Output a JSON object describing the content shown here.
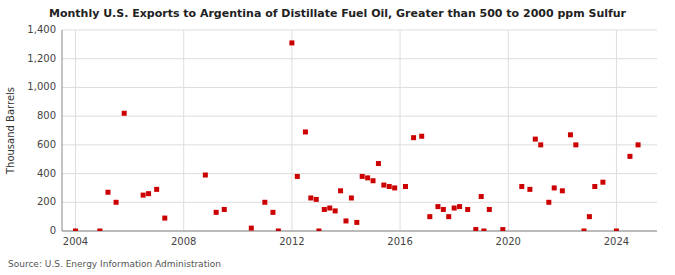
{
  "chart_data": {
    "type": "scatter",
    "title": "Monthly U.S. Exports to Argentina of Distillate Fuel Oil, Greater than 500 to 2000 ppm Sulfur",
    "y_label": "Thousand Barrels",
    "annotations": [
      "Source: U.S. Energy Information Administration"
    ],
    "color": "#cc0000",
    "marker": "square",
    "grid": true,
    "xlim": [
      2003.5,
      2025.5
    ],
    "ylim": [
      0,
      1400
    ],
    "xticks": [
      2004,
      2008,
      2012,
      2016,
      2020,
      2024
    ],
    "yticks": [
      0,
      200,
      400,
      600,
      800,
      {
        "value": 1000,
        "label": "1,000"
      },
      {
        "value": 1200,
        "label": "1,200"
      },
      {
        "value": 1400,
        "label": "1,400"
      }
    ],
    "x": [
      2004.0,
      2004.9,
      2005.2,
      2005.5,
      2005.8,
      2006.5,
      2006.7,
      2007.0,
      2007.3,
      2008.8,
      2009.2,
      2009.5,
      2010.5,
      2011.0,
      2011.3,
      2011.5,
      2012.0,
      2012.2,
      2012.5,
      2012.7,
      2012.9,
      2013.0,
      2013.2,
      2013.4,
      2013.6,
      2013.8,
      2014.0,
      2014.2,
      2014.4,
      2014.6,
      2014.8,
      2015.0,
      2015.2,
      2015.4,
      2015.6,
      2015.8,
      2016.2,
      2016.5,
      2016.8,
      2017.1,
      2017.4,
      2017.6,
      2017.8,
      2018.0,
      2018.2,
      2018.5,
      2018.8,
      2019.0,
      2019.1,
      2019.3,
      2019.8,
      2020.5,
      2020.8,
      2021.0,
      2021.2,
      2021.5,
      2021.7,
      2022.0,
      2022.3,
      2022.5,
      2022.8,
      2023.0,
      2023.2,
      2023.5,
      2024.0,
      2024.5,
      2024.8
    ],
    "values": [
      0,
      0,
      270,
      200,
      820,
      250,
      260,
      290,
      90,
      390,
      130,
      150,
      20,
      200,
      130,
      0,
      1310,
      380,
      690,
      230,
      220,
      0,
      150,
      160,
      140,
      280,
      70,
      230,
      60,
      380,
      370,
      350,
      470,
      320,
      310,
      300,
      310,
      650,
      660,
      100,
      170,
      150,
      100,
      160,
      170,
      150,
      10,
      240,
      0,
      150,
      10,
      310,
      290,
      640,
      600,
      200,
      300,
      280,
      670,
      600,
      0,
      100,
      310,
      340,
      0,
      520,
      600
    ]
  }
}
